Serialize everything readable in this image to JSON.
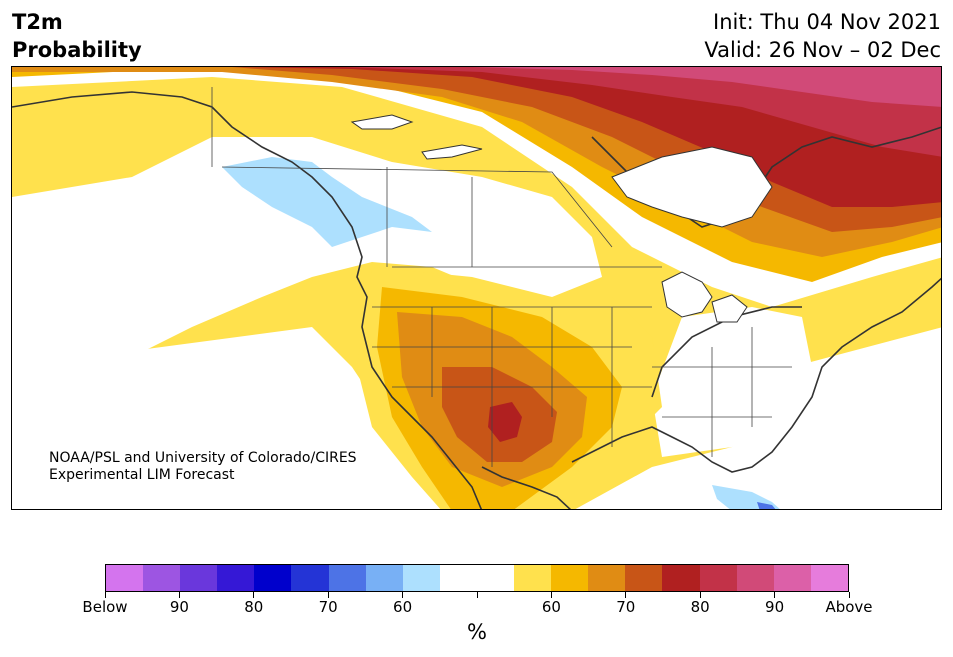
{
  "header": {
    "title_line1": "T2m",
    "title_line2": "Probability",
    "init": "Init: Thu 04 Nov 2021",
    "valid": "Valid: 26 Nov – 02 Dec"
  },
  "credit": {
    "line1": "NOAA/PSL and University of Colorado/CIRES",
    "line2": "Experimental LIM Forecast"
  },
  "colorbar": {
    "colors": [
      "#d474ee",
      "#9d55e2",
      "#6a37dc",
      "#3518d6",
      "#0000cc",
      "#2434d6",
      "#4d73e6",
      "#78b0f5",
      "#ade0fe",
      "#ffffff",
      "#ffffff",
      "#ffe14d",
      "#f5b800",
      "#e08c14",
      "#c85517",
      "#b02020",
      "#c23248",
      "#d14a78",
      "#dc60a8",
      "#e67cdc"
    ],
    "tick_labels": [
      "Below",
      "90",
      "80",
      "70",
      "60",
      "",
      "60",
      "70",
      "80",
      "90",
      "Above"
    ],
    "unit": "%"
  },
  "map": {
    "categories": [
      "Below",
      "Above"
    ],
    "colors": {
      "above_95": "#d14a78",
      "above_90": "#c23248",
      "above_85": "#b02020",
      "above_80": "#c85517",
      "above_70": "#e08c14",
      "above_60": "#f5b800",
      "above_55": "#ffe14d",
      "below_55": "#ade0fe",
      "below_60": "#78b0f5",
      "below_70": "#4d73e6"
    }
  }
}
